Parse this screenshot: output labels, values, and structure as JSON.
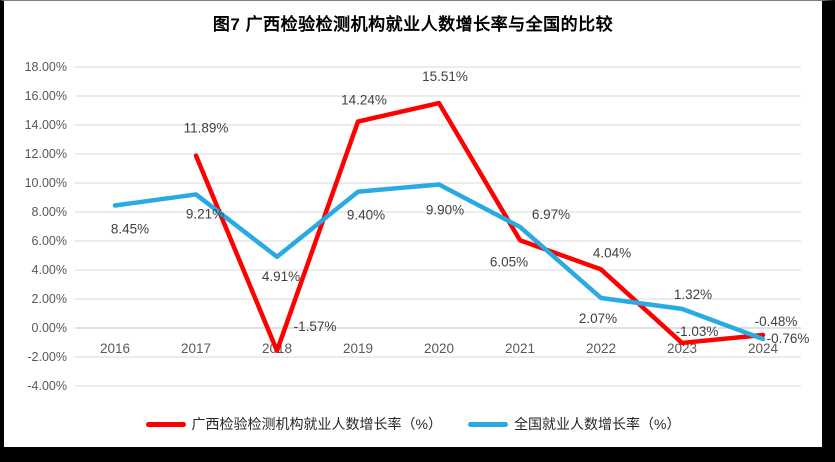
{
  "chart_data": {
    "type": "line",
    "title": "图7 广西检验检测机构就业人数增长率与全国的比较",
    "categories": [
      "2016",
      "2017",
      "2018",
      "2019",
      "2020",
      "2021",
      "2022",
      "2023",
      "2024"
    ],
    "y_axis": {
      "min": -4,
      "max": 18,
      "step": 2,
      "tick_labels": [
        "18.00%",
        "16.00%",
        "14.00%",
        "12.00%",
        "10.00%",
        "8.00%",
        "6.00%",
        "4.00%",
        "2.00%",
        "0.00%",
        "-2.00%",
        "-4.00%"
      ]
    },
    "grid": true,
    "legend_position": "bottom",
    "series": [
      {
        "name": "广西检验检测机构就业人数增长率（%）",
        "color": "#FF0000",
        "values": [
          null,
          11.89,
          -1.57,
          14.24,
          15.51,
          6.05,
          4.04,
          -1.03,
          -0.48
        ],
        "labels": [
          "",
          "11.89%",
          "-1.57%",
          "14.24%",
          "15.51%",
          "6.05%",
          "4.04%",
          "-1.03%",
          "-0.48%"
        ],
        "label_offsets": [
          [
            0,
            0
          ],
          [
            10,
            -27
          ],
          [
            38,
            -24
          ],
          [
            6,
            -21
          ],
          [
            6,
            -26
          ],
          [
            -11,
            22
          ],
          [
            11,
            -16
          ],
          [
            15,
            -11
          ],
          [
            13,
            -13
          ]
        ]
      },
      {
        "name": "全国就业人数增长率（%）",
        "color": "#29ABE2",
        "values": [
          8.45,
          9.21,
          4.91,
          9.4,
          9.9,
          6.97,
          2.07,
          1.32,
          -0.76
        ],
        "labels": [
          "8.45%",
          "9.21%",
          "4.91%",
          "9.40%",
          "9.90%",
          "6.97%",
          "2.07%",
          "1.32%",
          "-0.76%"
        ],
        "label_offsets": [
          [
            15,
            24
          ],
          [
            9,
            20
          ],
          [
            4,
            20
          ],
          [
            8,
            24
          ],
          [
            6,
            26
          ],
          [
            31,
            -12
          ],
          [
            -3,
            21
          ],
          [
            11,
            -14
          ],
          [
            25,
            0
          ]
        ]
      }
    ]
  }
}
